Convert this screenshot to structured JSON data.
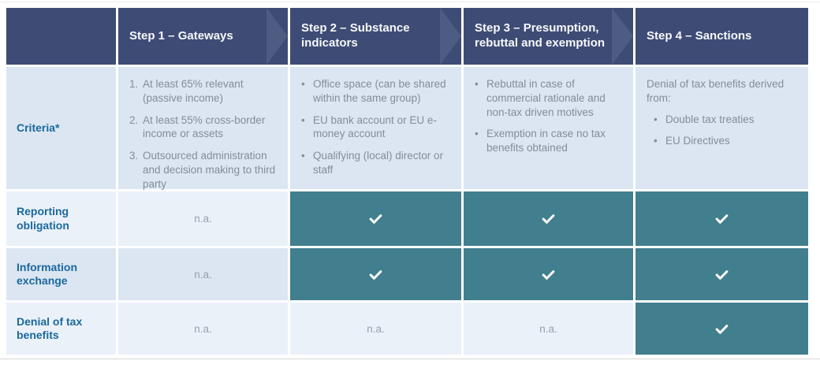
{
  "palette": {
    "header_navy": "#3e4c75",
    "chevron_navy": "#4e5c83",
    "check_teal": "#417e8e",
    "row_shade_dark": "#dbe6f2",
    "row_shade_light": "#eaf1f9",
    "label_blue": "#1b689d",
    "body_gray": "#848d99",
    "check_white": "#ffffff"
  },
  "table": {
    "na_text": "n.a.",
    "check_icon": "check-icon",
    "columns": [
      {
        "label": "",
        "chevron": false
      },
      {
        "label": "Step 1 – Gateways",
        "chevron": true
      },
      {
        "label": "Step 2 – Substance indicators",
        "chevron": true
      },
      {
        "label": "Step 3 – Presumption, rebuttal and exemption",
        "chevron": true
      },
      {
        "label": "Step 4 – Sanctions",
        "chevron": false
      }
    ],
    "rows": [
      {
        "label": "Criteria*",
        "cells": [
          {
            "type": "list",
            "style": "numbered",
            "items": [
              "At least 65% relevant (passive income)",
              "At least 55% cross-border income or assets",
              "Outsourced administration and decision making to third party"
            ]
          },
          {
            "type": "list",
            "style": "bullet",
            "items": [
              "Office space (can be shared within the same group)",
              "EU bank account or EU e-money account",
              "Qualifying (local) director or staff"
            ]
          },
          {
            "type": "list",
            "style": "bullet",
            "items": [
              "Rebuttal in case of commercial rationale and non-tax driven motives",
              "Exemption in case no tax benefits obtained"
            ]
          },
          {
            "type": "list",
            "style": "bullet",
            "intro": "Denial of tax benefits derived from:",
            "indent_items": true,
            "items": [
              "Double tax treaties",
              "EU Directives"
            ]
          }
        ]
      },
      {
        "label": "Reporting obligation",
        "cells": [
          {
            "type": "na"
          },
          {
            "type": "check"
          },
          {
            "type": "check"
          },
          {
            "type": "check"
          }
        ]
      },
      {
        "label": "Information exchange",
        "cells": [
          {
            "type": "na"
          },
          {
            "type": "check"
          },
          {
            "type": "check"
          },
          {
            "type": "check"
          }
        ]
      },
      {
        "label": "Denial of tax benefits",
        "cells": [
          {
            "type": "na"
          },
          {
            "type": "na"
          },
          {
            "type": "na"
          },
          {
            "type": "check"
          }
        ]
      }
    ]
  }
}
